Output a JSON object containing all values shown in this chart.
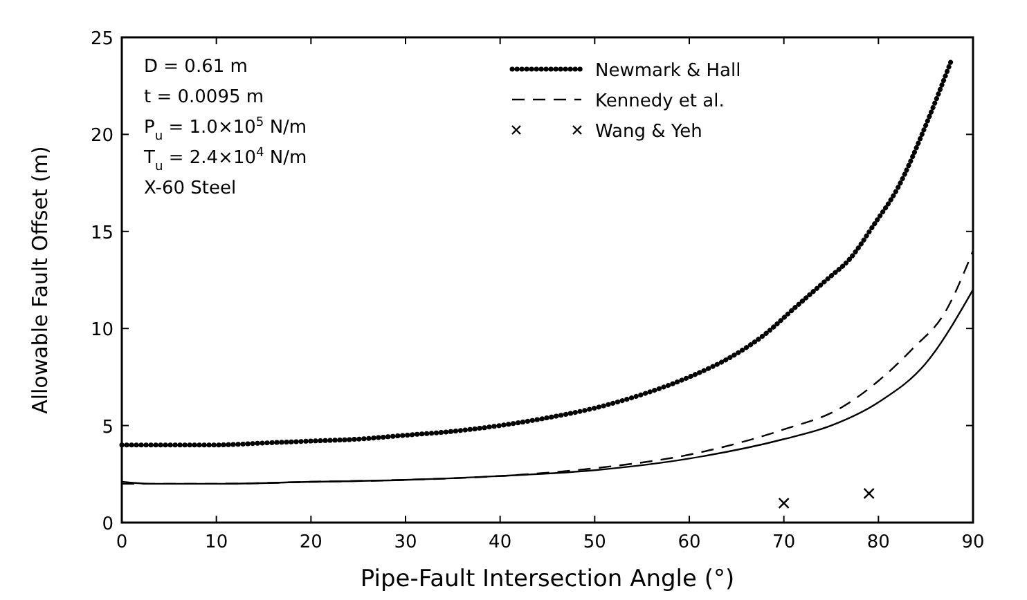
{
  "chart_data": {
    "type": "line",
    "xlabel": "Pipe-Fault Intersection Angle (°)",
    "ylabel": "Allowable Fault Offset (m)",
    "xlim": [
      0,
      90
    ],
    "ylim": [
      0,
      25
    ],
    "xticks": [
      0,
      10,
      20,
      30,
      40,
      50,
      60,
      70,
      80,
      90
    ],
    "yticks": [
      0,
      5,
      10,
      15,
      20,
      25
    ],
    "grid": false,
    "legend": "top right",
    "annotations": [
      "D = 0.61 m",
      "t = 0.0095 m",
      "P$_{u}$ = 1.0×10$^{5}$ N/m",
      "T$_{u}$ = 2.4×10$^{4}$ N/m",
      "X-60 Steel"
    ],
    "series": [
      {
        "name": "Newmark & Hall",
        "line_style": "dotted",
        "color": "#000000",
        "x": [
          0,
          5,
          10,
          15,
          20,
          25,
          30,
          35,
          40,
          45,
          50,
          55,
          60,
          65,
          68,
          71,
          74.5,
          77,
          79.6,
          82,
          85.2,
          87.7
        ],
        "values": [
          4.0,
          4.0,
          4.0,
          4.1,
          4.2,
          4.3,
          4.5,
          4.7,
          5.0,
          5.4,
          5.9,
          6.6,
          7.5,
          8.7,
          9.7,
          11.0,
          12.5,
          13.6,
          15.4,
          17.2,
          20.7,
          23.8
        ]
      },
      {
        "name": "Kennedy et al.",
        "line_style": "dashed",
        "color": "#000000",
        "x": [
          0,
          10,
          20,
          30,
          40,
          50,
          60,
          70,
          76,
          80,
          83.7,
          87,
          90
        ],
        "values": [
          2.0,
          2.0,
          2.1,
          2.2,
          2.4,
          2.8,
          3.5,
          4.8,
          5.9,
          7.3,
          9.0,
          10.8,
          14.0
        ]
      },
      {
        "line_style": "solid",
        "color": "#000000",
        "x": [
          0,
          3,
          10,
          20,
          30,
          40,
          50,
          60,
          70,
          75,
          80,
          85,
          90
        ],
        "values": [
          2.1,
          2.0,
          2.0,
          2.1,
          2.2,
          2.4,
          2.7,
          3.3,
          4.3,
          5.0,
          6.2,
          8.2,
          12.0
        ]
      },
      {
        "name": "Wang & Yeh",
        "type": "scatter",
        "marker": "cross",
        "color": "#000000",
        "x": [
          70,
          79
        ],
        "values": [
          1.0,
          1.5
        ]
      }
    ]
  }
}
